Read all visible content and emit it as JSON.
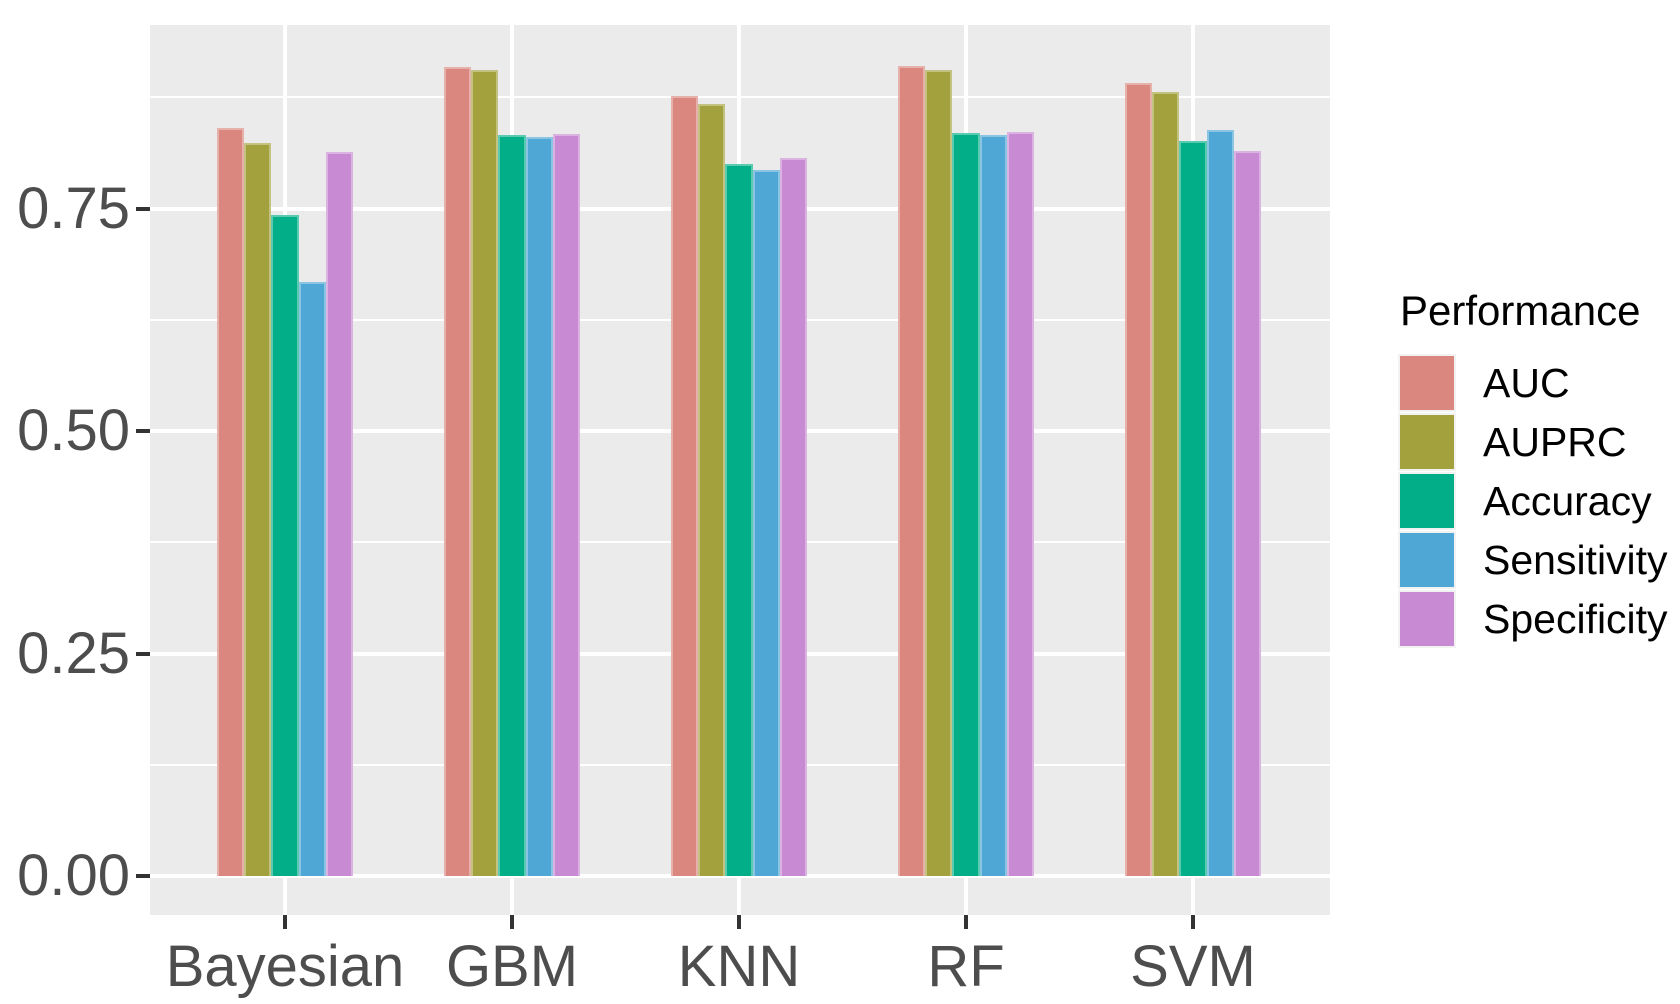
{
  "chart_data": {
    "type": "bar",
    "title": "",
    "xlabel": "",
    "ylabel": "",
    "categories": [
      "Bayesian",
      "GBM",
      "KNN",
      "RF",
      "SVM"
    ],
    "series": [
      {
        "name": "AUC",
        "color": "#D9877F",
        "values": [
          0.84,
          0.909,
          0.876,
          0.91,
          0.891
        ]
      },
      {
        "name": "AUPRC",
        "color": "#A3A13E",
        "values": [
          0.824,
          0.906,
          0.867,
          0.906,
          0.881
        ]
      },
      {
        "name": "Accuracy",
        "color": "#02AE88",
        "values": [
          0.743,
          0.833,
          0.8,
          0.835,
          0.826
        ]
      },
      {
        "name": "Sensitivity",
        "color": "#4EA7D4",
        "values": [
          0.667,
          0.83,
          0.793,
          0.833,
          0.838
        ]
      },
      {
        "name": "Specificity",
        "color": "#C88AD3",
        "values": [
          0.813,
          0.834,
          0.807,
          0.836,
          0.815
        ]
      }
    ],
    "y_ticks": [
      {
        "label": "0.00",
        "value": 0.0
      },
      {
        "label": "0.25",
        "value": 0.25
      },
      {
        "label": "0.50",
        "value": 0.5
      },
      {
        "label": "0.75",
        "value": 0.75
      }
    ],
    "y_minor": [
      0.125,
      0.375,
      0.625,
      0.875
    ],
    "ylim": [
      0,
      0.956
    ],
    "grid": "on",
    "legend": {
      "title": "Performance",
      "position": "right"
    }
  },
  "colors": {
    "panel_bg": "#EBEBEB",
    "gridline": "#FFFFFF",
    "axis_text": "#4D4D4D",
    "tick_mark": "#333333",
    "legend_text": "#000000"
  }
}
